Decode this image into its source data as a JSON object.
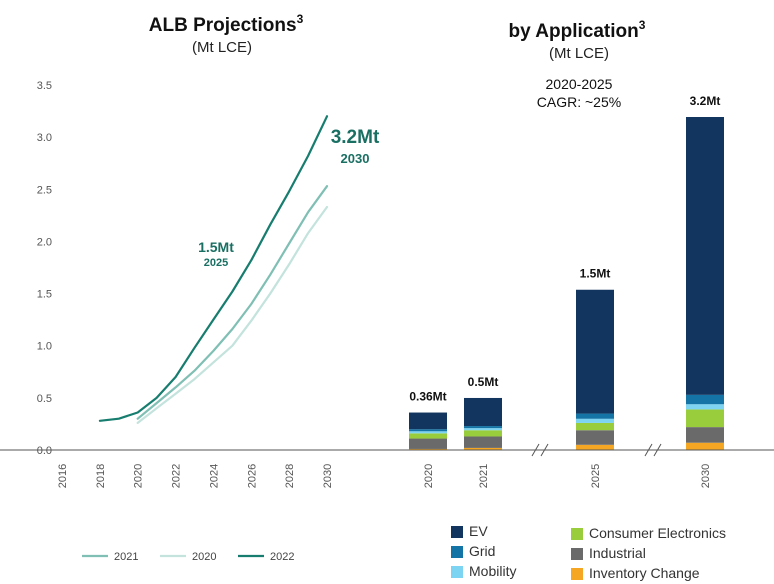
{
  "colors": {
    "line_2021": "#7fbfb4",
    "line_2020": "#c3e3dc",
    "line_2022": "#167d6f",
    "annotation": "#1a6f63",
    "axis": "#555555",
    "EV": "#11355f",
    "Grid": "#1474a6",
    "Mobility": "#7dd3f2",
    "Consumer Electronics": "#9acd3c",
    "Industrial": "#6a6a6a",
    "Inventory Change": "#f5a623"
  },
  "chart_data": [
    {
      "type": "line",
      "title": "ALB Projections",
      "title_sup": "3",
      "subtitle": "(Mt LCE)",
      "ylim": [
        0,
        3.5
      ],
      "yticks": [
        "0.0",
        "0.5",
        "1.0",
        "1.5",
        "2.0",
        "2.5",
        "3.0",
        "3.5"
      ],
      "xlim": [
        2016,
        2030
      ],
      "xticks": [
        "2016",
        "2018",
        "2020",
        "2022",
        "2024",
        "2026",
        "2028",
        "2030"
      ],
      "series": [
        {
          "name": "2021",
          "color_key": "line_2021",
          "x": [
            2020,
            2021,
            2022,
            2023,
            2024,
            2025,
            2026,
            2027,
            2028,
            2029,
            2030
          ],
          "y": [
            0.3,
            0.45,
            0.6,
            0.76,
            0.95,
            1.16,
            1.4,
            1.68,
            1.98,
            2.28,
            2.53
          ]
        },
        {
          "name": "2020",
          "color_key": "line_2020",
          "x": [
            2020,
            2021,
            2022,
            2023,
            2024,
            2025,
            2026,
            2027,
            2028,
            2029,
            2030
          ],
          "y": [
            0.26,
            0.4,
            0.54,
            0.68,
            0.84,
            1.0,
            1.24,
            1.5,
            1.78,
            2.08,
            2.33
          ]
        },
        {
          "name": "2022",
          "color_key": "line_2022",
          "x": [
            2018,
            2019,
            2020,
            2021,
            2022,
            2023,
            2024,
            2025,
            2026,
            2027,
            2028,
            2029,
            2030
          ],
          "y": [
            0.28,
            0.3,
            0.36,
            0.5,
            0.7,
            0.98,
            1.25,
            1.52,
            1.82,
            2.16,
            2.48,
            2.82,
            3.2
          ]
        }
      ],
      "legend_order": [
        "2021",
        "2020",
        "2022"
      ],
      "legend_position": "bottom",
      "annotations": [
        {
          "main": "1.5Mt",
          "sub": "2025"
        },
        {
          "main": "3.2Mt",
          "sub": "2030"
        }
      ]
    },
    {
      "type": "bar",
      "stacked": true,
      "title": "by Application",
      "title_sup": "3",
      "subtitle": "(Mt LCE)",
      "note_line1": "2020-2025",
      "note_line2": "CAGR: ~25%",
      "categories": [
        "2020",
        "2021",
        "2025",
        "2030"
      ],
      "axis_breaks": [
        "between 2021 and 2025",
        "between 2025 and 2030"
      ],
      "totals_labels": [
        "0.36Mt",
        "0.5Mt",
        "1.5Mt",
        "3.2Mt"
      ],
      "series": [
        {
          "name": "Inventory Change",
          "values": [
            0.01,
            0.02,
            0.05,
            0.07
          ]
        },
        {
          "name": "Industrial",
          "values": [
            0.1,
            0.11,
            0.14,
            0.15
          ]
        },
        {
          "name": "Consumer Electronics",
          "values": [
            0.05,
            0.06,
            0.07,
            0.17
          ]
        },
        {
          "name": "Mobility",
          "values": [
            0.02,
            0.02,
            0.04,
            0.05
          ]
        },
        {
          "name": "Grid",
          "values": [
            0.02,
            0.02,
            0.05,
            0.09
          ]
        },
        {
          "name": "EV",
          "values": [
            0.16,
            0.27,
            1.19,
            2.67
          ]
        }
      ],
      "legend": {
        "left": [
          "EV",
          "Grid",
          "Mobility"
        ],
        "right": [
          "Consumer Electronics",
          "Industrial",
          "Inventory Change"
        ]
      }
    }
  ]
}
